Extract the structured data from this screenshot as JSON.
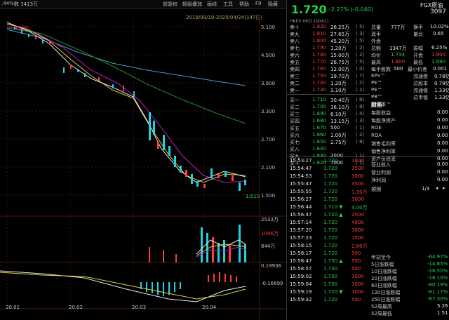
{
  "topbar": {
    "left_pct": ".44%",
    "shares": "数 3413万",
    "menu": [
      "前复权",
      "超级叠加",
      "画线",
      "工具",
      "帮助",
      "F9",
      "隐藏"
    ]
  },
  "chart": {
    "range": "2019/09/19-2020/04/24(147日)",
    "high_label": "5.130",
    "low_label": "1.610",
    "price_ticks": [
      "5.100",
      "4.500",
      "3.900",
      "3.300",
      "2.700",
      "2.100",
      "1.500"
    ],
    "vol_ticks": [
      "2533万",
      "1096万",
      "844万"
    ],
    "macd_ticks": [
      "0.19936",
      "-0.16699"
    ],
    "date_ticks": [
      "20.01",
      "20.02",
      "20.03",
      "20.04"
    ]
  },
  "quote": {
    "price": "1.720",
    "change": "-2.27% (-0.040)",
    "name": "FGX原油",
    "code": "3097",
    "market": "HKEX  HKD  1b0411"
  },
  "asks": [
    {
      "label": "卖十",
      "price": "1.820",
      "vol": "26.25万",
      "n": "( 5)"
    },
    {
      "label": "卖九",
      "price": "1.810",
      "vol": "27.65万",
      "n": "( 3)"
    },
    {
      "label": "卖八",
      "price": "1.800",
      "vol": "45.20万",
      "n": "( 5)"
    },
    {
      "label": "卖七",
      "price": "1.790",
      "vol": "1.20万",
      "n": "( 2)"
    },
    {
      "label": "卖六",
      "price": "1.780",
      "vol": "15.00万",
      "n": "( 2)"
    },
    {
      "label": "卖五",
      "price": "1.770",
      "vol": "26.75万",
      "n": "( 5)"
    },
    {
      "label": "卖四",
      "price": "1.760",
      "vol": "12.00万",
      "n": "( 4)"
    },
    {
      "label": "卖三",
      "price": "1.750",
      "vol": "19.70万",
      "n": "( 7)"
    },
    {
      "label": "卖二",
      "price": "1.740",
      "vol": "1.20万",
      "n": "( 2)"
    },
    {
      "label": "卖一",
      "price": "1.730",
      "vol": "3.10万",
      "n": "( 2)"
    }
  ],
  "bids": [
    {
      "label": "买一",
      "price": "1.710",
      "vol": "30.40万",
      "n": "( 6)"
    },
    {
      "label": "买二",
      "price": "1.700",
      "vol": "16.10万",
      "n": "( 8)"
    },
    {
      "label": "买三",
      "price": "1.690",
      "vol": "6.10万",
      "n": "( 4)"
    },
    {
      "label": "买四",
      "price": "1.680",
      "vol": "13.15万",
      "n": "( 3)"
    },
    {
      "label": "买五",
      "price": "1.670",
      "vol": "500",
      "n": "( 1)"
    },
    {
      "label": "买六",
      "price": "1.660",
      "vol": "1.00万",
      "n": "( 2)"
    },
    {
      "label": "买七",
      "price": "1.650",
      "vol": "2.75万",
      "n": "( 8)"
    },
    {
      "label": "买八",
      "price": "1.640",
      "vol": "",
      "n": ""
    },
    {
      "label": "买九",
      "price": "1.630",
      "vol": "2000",
      "n": "( 1)"
    },
    {
      "label": "买十",
      "price": "1.620",
      "vol": "7000",
      "n": "( 1)"
    }
  ],
  "stats": [
    {
      "k": "总量",
      "v": "777万",
      "k2": "换手",
      "v2": "10.02%"
    },
    {
      "k": "现手",
      "v": "",
      "k2": "量比",
      "v2": "0.65"
    },
    {
      "k": "外盘",
      "v": "",
      "k2": "",
      "v2": ""
    },
    {
      "k": "总额",
      "v": "1347万",
      "k2": "振幅",
      "v2": "6.25%"
    },
    {
      "k": "均价",
      "v": "1.734",
      "k2": "开盘",
      "v2": "1.800"
    },
    {
      "k": "最高",
      "v": "1.800",
      "k2": "最低",
      "v2": "1.690"
    }
  ],
  "fin_header": {
    "k": "每手股数",
    "v": "500",
    "k2": "最小价差",
    "v2": "0.001"
  },
  "fin": [
    {
      "k": "EPS™",
      "v": "",
      "k2": "流通盘",
      "v2": "0.78亿"
    },
    {
      "k": "PE™",
      "v": "",
      "k2": "总股本",
      "v2": "0.78亿"
    },
    {
      "k": "PE™",
      "v": "",
      "k2": "流通值",
      "v2": "1.33亿"
    },
    {
      "k": "PB™",
      "v": "",
      "k2": "总市值",
      "v2": "1.33亿"
    },
    {
      "k": "股息率™",
      "v": "",
      "k2": "",
      "v2": ""
    }
  ],
  "finance_title": "财务",
  "finance_rows": [
    {
      "k": "每股收益",
      "v": "0.00"
    },
    {
      "k": "每股净资产",
      "v": "0.00"
    },
    {
      "k": "ROE",
      "v": "0.00"
    },
    {
      "k": "ROA",
      "v": "0.00"
    },
    {
      "k": "销售毛利率",
      "v": "0.00"
    },
    {
      "k": "销售净利率",
      "v": "0.00"
    },
    {
      "k": "资产负债率",
      "v": "0.00"
    }
  ],
  "ticks": [
    {
      "t": "15:53:27",
      "p": "1.720",
      "v": "1000"
    },
    {
      "t": "15:54:47",
      "p": "1.720",
      "v": "3500"
    },
    {
      "t": "15:54:53",
      "p": "1.720",
      "v": "3000"
    },
    {
      "t": "15:55:47",
      "p": "1.720",
      "v": "3500"
    },
    {
      "t": "15:55:55",
      "p": "1.720",
      "v": "1.30万"
    },
    {
      "t": "15:56:27",
      "p": "1.720",
      "v": "3000"
    },
    {
      "t": "15:56:44",
      "p": "1.710 ▼",
      "v": "4.00万"
    },
    {
      "t": "15:56:47",
      "p": "1.720 ▲",
      "v": "2000"
    },
    {
      "t": "15:57:14",
      "p": "1.720",
      "v": "4000"
    },
    {
      "t": "15:57:20",
      "p": "1.720",
      "v": "3000"
    },
    {
      "t": "15:57:23",
      "p": "1.720",
      "v": "1500"
    },
    {
      "t": "15:58:15",
      "p": "1.720",
      "v": "2.80万"
    },
    {
      "t": "15:58:17",
      "p": "1.720",
      "v": "500"
    },
    {
      "t": "15:58:47",
      "p": "1.730 ▲",
      "v": "500"
    },
    {
      "t": "15:58:57",
      "p": "1.730",
      "v": "500"
    },
    {
      "t": "15:59:02",
      "p": "1.730",
      "v": "1000"
    },
    {
      "t": "15:59:04",
      "p": "1.730",
      "v": "1000"
    },
    {
      "t": "15:59:19",
      "p": "1.720 ▼",
      "v": "1000"
    },
    {
      "t": "15:59:32",
      "p": "1.720",
      "v": "500"
    }
  ],
  "fund": [
    {
      "k": "营业收入",
      "v": "0.00"
    },
    {
      "k": "营业利润",
      "v": "0.00"
    },
    {
      "k": "净利润",
      "v": "0.00"
    }
  ],
  "forecast": {
    "label": "预测",
    "page": "1/3"
  },
  "perf": [
    {
      "k": "年初至今",
      "v": "-64.97%"
    },
    {
      "k": "5日涨跌幅",
      "v": "-14.85%"
    },
    {
      "k": "10日涨跌幅",
      "v": "-16.50%"
    },
    {
      "k": "20日涨跌幅",
      "v": "-16.10%"
    },
    {
      "k": "60日涨跌幅",
      "v": "-60.19%"
    },
    {
      "k": "120日涨跌幅",
      "v": "-61.17%"
    },
    {
      "k": "250日涨跌幅",
      "v": "-67.30%"
    },
    {
      "k": "52周最高",
      "v": "5.26"
    },
    {
      "k": "52周最低",
      "v": "1.51"
    }
  ]
}
